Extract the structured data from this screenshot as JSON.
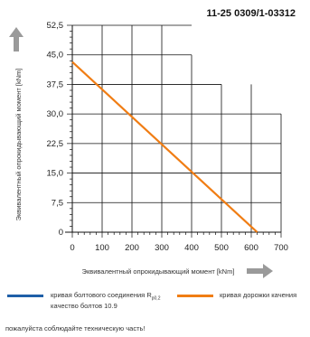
{
  "drawing_number": "11-25 0309/1-03312",
  "chart_data": {
    "type": "line",
    "xlabel": "Эквивалентный опрокидывающий момент [kNm]",
    "ylabel": "Эквивалентный опрокидывающий момент [kNm]",
    "xlim": [
      0,
      700
    ],
    "ylim": [
      0,
      52.5
    ],
    "x_ticks": [
      "0",
      "100",
      "200",
      "300",
      "400",
      "500",
      "600",
      "700"
    ],
    "y_ticks": [
      "0",
      "7,5",
      "15,0",
      "22,5",
      "30,0",
      "37,5",
      "45,0",
      "52,5"
    ],
    "grid": true,
    "series": [
      {
        "name": "кривая дорожки качения",
        "color": "#f07d14",
        "points": [
          [
            0,
            43.2
          ],
          [
            620,
            0
          ]
        ]
      }
    ],
    "stepped_grid": [
      {
        "x_to": 400,
        "y_from": 45.0
      },
      {
        "x_to": 500,
        "y_from": 37.5
      },
      {
        "x_to": 700,
        "y_from": 30.0
      }
    ]
  },
  "legend": {
    "bolt_curve_label": "кривая болтового соединения R",
    "bolt_curve_sub": "p0,2",
    "bolt_curve_label2": "качество болтов 10.9",
    "bolt_curve_color": "#1f5fa8",
    "race_curve_label": "кривая дорожки качения",
    "race_curve_color": "#f07d14"
  },
  "note": "пожалуйста соблюдайте техническую часть!"
}
